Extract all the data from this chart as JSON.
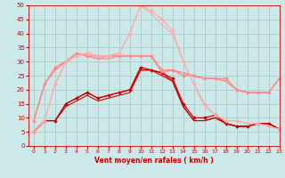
{
  "title": "",
  "xlabel": "Vent moyen/en rafales ( km/h )",
  "ylabel": "",
  "background_color": "#cce8e8",
  "grid_color": "#aacccc",
  "x_values": [
    0,
    1,
    2,
    3,
    4,
    5,
    6,
    7,
    8,
    9,
    10,
    11,
    12,
    13,
    14,
    15,
    16,
    17,
    18,
    19,
    20,
    21,
    22,
    23
  ],
  "series": [
    {
      "y": [
        5,
        9,
        9,
        15,
        17,
        19,
        17,
        18,
        19,
        20,
        28,
        27,
        26,
        24,
        15,
        10,
        10,
        11,
        8,
        7,
        7,
        8,
        8,
        6
      ],
      "color": "#cc0000",
      "marker": "D",
      "markersize": 1.8,
      "linewidth": 0.9,
      "alpha": 1.0
    },
    {
      "y": [
        5,
        9,
        9,
        14,
        16,
        18,
        16,
        17,
        18,
        19,
        27,
        27,
        26,
        23,
        14,
        9,
        9,
        10,
        8,
        7,
        7,
        8,
        8,
        6
      ],
      "color": "#cc0000",
      "marker": null,
      "markersize": 0,
      "linewidth": 0.8,
      "alpha": 1.0
    },
    {
      "y": [
        5,
        9,
        9,
        15,
        17,
        19,
        17,
        18,
        19,
        20,
        27,
        27,
        25,
        23,
        14,
        9,
        9,
        10,
        8,
        7,
        7,
        8,
        8,
        6
      ],
      "color": "#cc0000",
      "marker": null,
      "markersize": 0,
      "linewidth": 0.8,
      "alpha": 1.0
    },
    {
      "y": [
        9,
        22,
        28,
        30,
        33,
        32,
        32,
        32,
        32,
        32,
        32,
        32,
        27,
        27,
        25,
        25,
        24,
        24,
        24,
        20,
        19,
        19,
        19,
        24
      ],
      "color": "#ff8888",
      "marker": "D",
      "markersize": 1.8,
      "linewidth": 0.9,
      "alpha": 1.0
    },
    {
      "y": [
        9,
        22,
        27,
        30,
        33,
        32,
        31,
        32,
        32,
        32,
        32,
        32,
        27,
        27,
        26,
        25,
        24,
        24,
        23,
        20,
        19,
        19,
        19,
        24
      ],
      "color": "#ff8888",
      "marker": null,
      "markersize": 0,
      "linewidth": 0.8,
      "alpha": 1.0
    },
    {
      "y": [
        9,
        22,
        27,
        30,
        33,
        32,
        31,
        31,
        32,
        32,
        32,
        32,
        26,
        27,
        26,
        25,
        24,
        24,
        23,
        20,
        19,
        19,
        19,
        24
      ],
      "color": "#ff8888",
      "marker": null,
      "markersize": 0,
      "linewidth": 0.8,
      "alpha": 1.0
    },
    {
      "y": [
        5,
        9,
        22,
        30,
        32,
        33,
        32,
        32,
        33,
        40,
        50,
        48,
        45,
        41,
        30,
        22,
        15,
        11,
        9,
        9,
        8,
        8,
        7,
        6
      ],
      "color": "#ffaaaa",
      "marker": "D",
      "markersize": 1.8,
      "linewidth": 0.9,
      "alpha": 1.0
    },
    {
      "y": [
        5,
        9,
        22,
        30,
        32,
        33,
        32,
        32,
        33,
        40,
        50,
        47,
        43,
        40,
        30,
        22,
        14,
        11,
        9,
        9,
        8,
        8,
        7,
        6
      ],
      "color": "#ffaaaa",
      "marker": null,
      "markersize": 0,
      "linewidth": 0.8,
      "alpha": 1.0
    }
  ],
  "xlim": [
    -0.5,
    23
  ],
  "ylim": [
    0,
    50
  ],
  "yticks": [
    0,
    5,
    10,
    15,
    20,
    25,
    30,
    35,
    40,
    45,
    50
  ],
  "xticks": [
    0,
    1,
    2,
    3,
    4,
    5,
    6,
    7,
    8,
    9,
    10,
    11,
    12,
    13,
    14,
    15,
    16,
    17,
    18,
    19,
    20,
    21,
    22,
    23
  ]
}
